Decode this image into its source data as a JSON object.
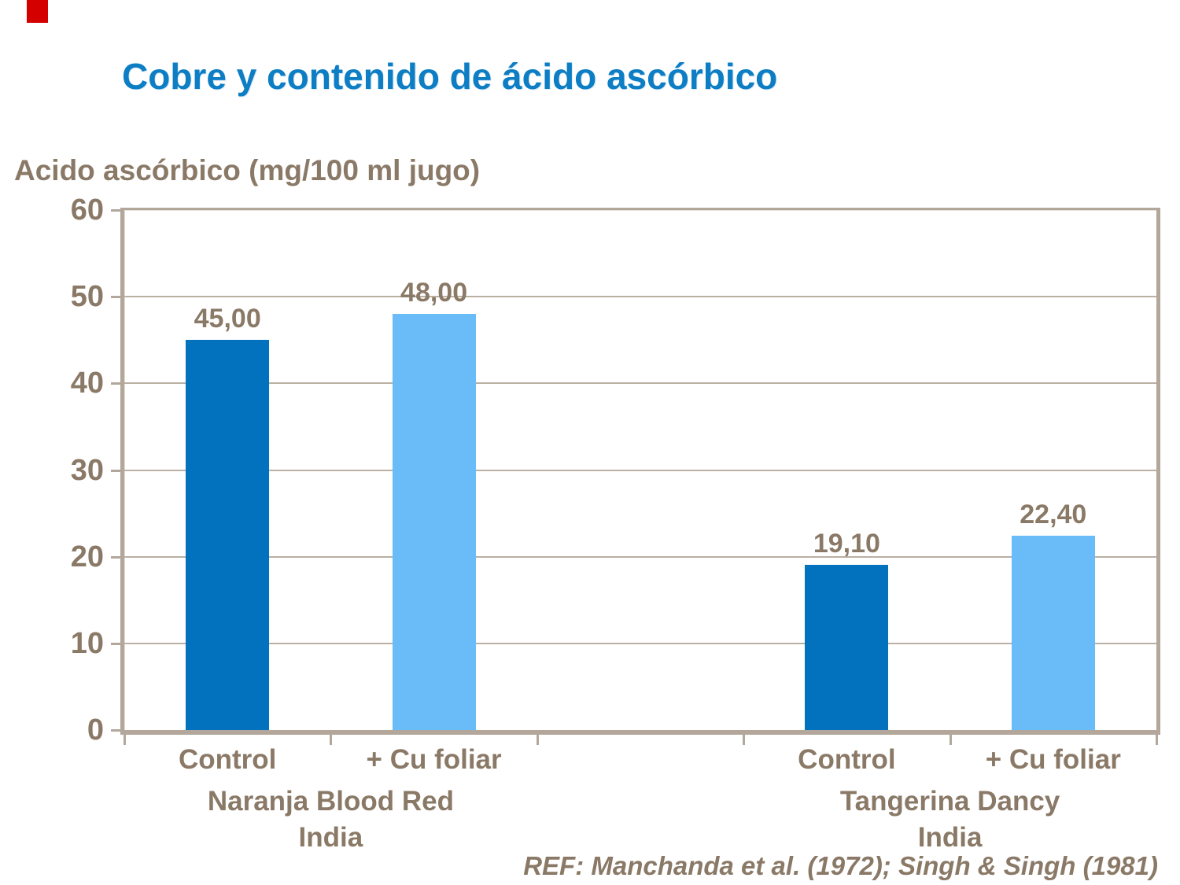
{
  "title": {
    "text": "Cobre y contenido de ácido ascórbico",
    "color": "#0d7dc4"
  },
  "reference": "REF: Manchanda et al. (1972); Singh & Singh (1981)",
  "accent": {
    "red_box_color": "#d40000"
  },
  "text_color": "#8a7966",
  "chart_data": {
    "type": "bar",
    "title": "Cobre y contenido de ácido ascórbico",
    "ylabel": "Acido ascórbico (mg/100 ml jugo)",
    "xlabel": "",
    "ylim": [
      0,
      60
    ],
    "yticks": [
      0,
      10,
      20,
      30,
      40,
      50,
      60
    ],
    "grid": true,
    "legend_position": "none",
    "bar_colors": {
      "control": "#0272bf",
      "cu_foliar": "#69bcf8"
    },
    "groups": [
      {
        "name_line1": "Naranja Blood Red",
        "name_line2": "India",
        "bars": [
          {
            "label": "Control",
            "value": 45.0,
            "display": "45,00",
            "color": "#0272bf"
          },
          {
            "label": "+ Cu foliar",
            "value": 48.0,
            "display": "48,00",
            "color": "#69bcf8"
          }
        ]
      },
      {
        "name_line1": "Tangerina Dancy",
        "name_line2": "India",
        "bars": [
          {
            "label": "Control",
            "value": 19.1,
            "display": "19,10",
            "color": "#0272bf"
          },
          {
            "label": "+ Cu foliar",
            "value": 22.4,
            "display": "22,40",
            "color": "#69bcf8"
          }
        ]
      }
    ]
  }
}
